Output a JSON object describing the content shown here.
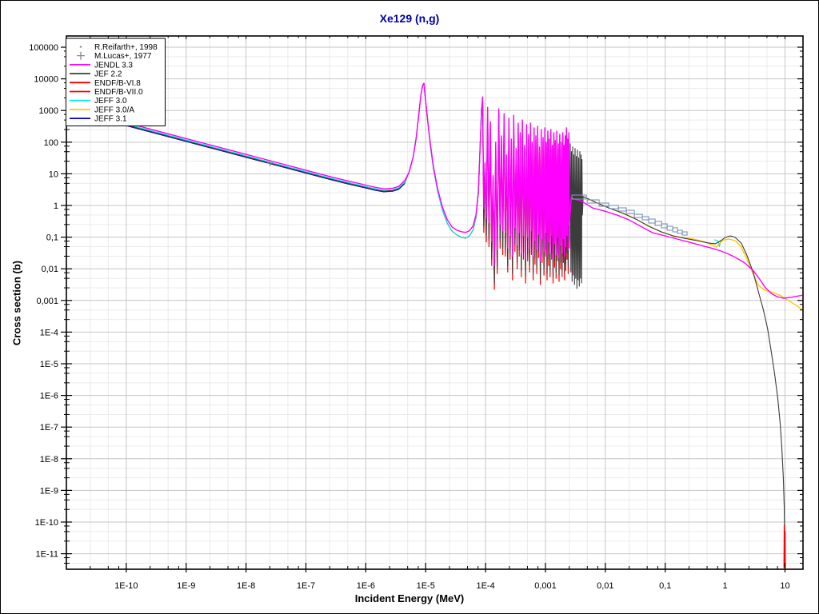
{
  "window": {
    "background": "#ffffff",
    "border_color": "#000000"
  },
  "chart_data": {
    "type": "line",
    "title": "Xe129 (n,g)",
    "title_color": "#0000aa",
    "xlabel": "Incident Energy (MeV)",
    "ylabel": "Cross section (b)",
    "x_scale": "log10",
    "y_scale": "log10",
    "x_range_lg": [
      -11,
      1.301
    ],
    "y_range_lg": [
      -11.49,
      5.354
    ],
    "grid": "on",
    "colors": {
      "grid_major": "#c6c6c6",
      "grid_minor": "#ebebeb",
      "frame": "#000000",
      "exp_box": "#7b95ba",
      "lucas_marker": "#808080",
      "reifarth_marker": "#999999"
    },
    "x_ticks": {
      "lg": [
        -10,
        -9,
        -8,
        -7,
        -6,
        -5,
        -4,
        -3,
        -2,
        -1,
        0,
        1
      ],
      "labels": [
        "1E-10",
        "1E-9",
        "1E-8",
        "1E-7",
        "1E-6",
        "1E-5",
        "1E-4",
        "0,001",
        "0,01",
        "0,1",
        "1",
        "10"
      ]
    },
    "y_ticks": {
      "lg": [
        5,
        4,
        3,
        2,
        1,
        0,
        -1,
        -2,
        -3,
        -4,
        -5,
        -6,
        -7,
        -8,
        -9,
        -10,
        -11
      ],
      "labels": [
        "100000",
        "10000",
        "1000",
        "100",
        "10",
        "1",
        "0,1",
        "0,01",
        "0,001",
        "1E-4",
        "1E-5",
        "1E-6",
        "1E-7",
        "1E-8",
        "1E-9",
        "1E-10",
        "1E-11"
      ]
    },
    "minor_grid_offsets_lg": [
      0.398,
      0.699
    ],
    "minor_tick_offsets_lg": [
      0.398,
      0.699,
      0.875
    ],
    "legend": {
      "position": "top-left",
      "entries": [
        {
          "label": "R.Reifarth+, 1998",
          "marker": "dot",
          "color": "#999999"
        },
        {
          "label": "M.Lucas+, 1977",
          "marker": "plus",
          "color": "#808080"
        },
        {
          "label": "JENDL 3.3",
          "marker": "line",
          "color": "#ff00ff"
        },
        {
          "label": "JEF 2.2",
          "marker": "line",
          "color": "#3c3c3c"
        },
        {
          "label": "ENDF/B-VI.8",
          "marker": "line",
          "color": "#e60000"
        },
        {
          "label": "ENDF/B-VII.0",
          "marker": "line",
          "color": "#ff0000"
        },
        {
          "label": "JEFF 3.0",
          "marker": "line",
          "color": "#00eeee"
        },
        {
          "label": "JEFF 3.0/A",
          "marker": "line",
          "color": "#ffc800"
        },
        {
          "label": "JEFF 3.1",
          "marker": "line",
          "color": "#0000cc"
        }
      ]
    },
    "shared": {
      "thermal_1v": [
        [
          -11,
          3.04
        ],
        [
          -10.5,
          2.79
        ],
        [
          -10,
          2.54
        ],
        [
          -9.5,
          2.29
        ],
        [
          -9,
          2.04
        ],
        [
          -8.5,
          1.79
        ],
        [
          -8,
          1.54
        ],
        [
          -7.6,
          1.34
        ],
        [
          -7,
          1.04
        ],
        [
          -6.6,
          0.84
        ],
        [
          -6.3,
          0.7
        ],
        [
          -6.0,
          0.57
        ],
        [
          -5.85,
          0.5
        ],
        [
          -5.7,
          0.45
        ],
        [
          -5.55,
          0.47
        ],
        [
          -5.45,
          0.53
        ],
        [
          -5.35,
          0.71
        ]
      ],
      "resonance_rise": [
        [
          -5.28,
          1.04
        ],
        [
          -5.21,
          1.52
        ],
        [
          -5.16,
          2.12
        ],
        [
          -5.12,
          2.78
        ],
        [
          -5.08,
          3.48
        ],
        [
          -5.05,
          3.8
        ],
        [
          -5.03,
          3.86
        ]
      ],
      "descent_jef": [
        [
          -5.0,
          3.28
        ],
        [
          -4.96,
          2.55
        ],
        [
          -4.92,
          1.87
        ],
        [
          -4.87,
          1.16
        ],
        [
          -4.8,
          0.45
        ],
        [
          -4.72,
          -0.15
        ],
        [
          -4.64,
          -0.56
        ],
        [
          -4.56,
          -0.81
        ],
        [
          -4.48,
          -0.93
        ],
        [
          -4.4,
          -1.01
        ],
        [
          -4.33,
          -1.03
        ],
        [
          -4.27,
          -0.96
        ],
        [
          -4.21,
          -0.78
        ],
        [
          -4.16,
          -0.38
        ],
        [
          -4.12,
          0.4
        ],
        [
          -4.09,
          1.92
        ],
        [
          -4.07,
          3.0
        ]
      ],
      "descent_jendl": [
        [
          -5.0,
          3.3
        ],
        [
          -4.96,
          2.58
        ],
        [
          -4.92,
          1.92
        ],
        [
          -4.87,
          1.22
        ],
        [
          -4.8,
          0.52
        ],
        [
          -4.72,
          -0.05
        ],
        [
          -4.64,
          -0.45
        ],
        [
          -4.56,
          -0.68
        ],
        [
          -4.48,
          -0.78
        ],
        [
          -4.4,
          -0.83
        ],
        [
          -4.33,
          -0.85
        ],
        [
          -4.27,
          -0.8
        ],
        [
          -4.21,
          -0.65
        ],
        [
          -4.16,
          -0.3
        ],
        [
          -4.12,
          0.45
        ],
        [
          -4.09,
          1.95
        ],
        [
          -4.06,
          3.1
        ]
      ],
      "rrr_spikes": [
        [
          -4.05,
          3.43,
          -0.1
        ],
        [
          -4.01,
          1.35,
          -0.4
        ],
        [
          -3.965,
          3.1,
          -0.55
        ],
        [
          -3.92,
          2.65,
          -1.15
        ],
        [
          -3.875,
          0.95,
          -1.9
        ],
        [
          -3.83,
          2.0,
          -1.4
        ],
        [
          -3.78,
          3.05,
          -0.6
        ],
        [
          -3.735,
          2.2,
          -0.8
        ],
        [
          -3.69,
          2.9,
          -0.85
        ],
        [
          -3.65,
          1.6,
          -1.35
        ],
        [
          -3.61,
          2.75,
          -0.95
        ],
        [
          -3.57,
          2.1,
          -1.6
        ],
        [
          -3.53,
          2.85,
          -0.7
        ],
        [
          -3.49,
          1.8,
          -1.25
        ],
        [
          -3.455,
          2.6,
          -0.85
        ],
        [
          -3.42,
          2.3,
          -1.5
        ],
        [
          -3.385,
          2.7,
          -0.95
        ],
        [
          -3.35,
          1.9,
          -1.7
        ],
        [
          -3.315,
          2.55,
          -1.0
        ],
        [
          -3.28,
          2.25,
          -1.35
        ],
        [
          -3.25,
          2.6,
          -0.8
        ],
        [
          -3.22,
          2.0,
          -1.6
        ],
        [
          -3.19,
          2.45,
          -1.1
        ],
        [
          -3.16,
          2.2,
          -1.4
        ],
        [
          -3.13,
          2.5,
          -0.9
        ],
        [
          -3.1,
          1.85,
          -1.75
        ],
        [
          -3.07,
          2.4,
          -1.05
        ],
        [
          -3.04,
          2.15,
          -1.45
        ],
        [
          -3.01,
          2.45,
          -0.85
        ],
        [
          -2.985,
          2.0,
          -1.6
        ],
        [
          -2.96,
          2.35,
          -1.15
        ],
        [
          -2.935,
          2.1,
          -1.5
        ],
        [
          -2.91,
          2.4,
          -0.95
        ],
        [
          -2.885,
          1.9,
          -1.7
        ],
        [
          -2.86,
          2.3,
          -1.2
        ],
        [
          -2.835,
          2.05,
          -1.55
        ],
        [
          -2.81,
          2.35,
          -1.0
        ],
        [
          -2.785,
          1.95,
          -1.65
        ],
        [
          -2.76,
          2.25,
          -1.25
        ],
        [
          -2.735,
          2.0,
          -1.5
        ],
        [
          -2.71,
          2.3,
          -1.05
        ],
        [
          -2.69,
          1.9,
          -1.6
        ],
        [
          -2.67,
          2.2,
          -1.3
        ],
        [
          -2.65,
          2.45,
          -0.95
        ],
        [
          -2.63,
          2.1,
          -1.4
        ],
        [
          -2.61,
          2.3,
          -0.6
        ]
      ]
    },
    "series": {
      "jendl33": {
        "name": "JENDL 3.3",
        "color": "#ff00ff",
        "width": 1.4,
        "thermal_offset": 0.075,
        "urr": [
          [
            -2.57,
            0.23
          ],
          [
            -2.41,
            0.15
          ],
          [
            -2.21,
            -0.08
          ],
          [
            -2.01,
            -0.18
          ],
          [
            -1.81,
            -0.3
          ],
          [
            -1.61,
            -0.45
          ],
          [
            -1.41,
            -0.66
          ],
          [
            -1.21,
            -0.86
          ],
          [
            -1.0,
            -0.96
          ],
          [
            -0.8,
            -1.06
          ],
          [
            -0.6,
            -1.16
          ],
          [
            -0.4,
            -1.26
          ],
          [
            -0.2,
            -1.36
          ],
          [
            -0.07,
            -1.44
          ],
          [
            0.065,
            -1.54
          ],
          [
            0.2,
            -1.67
          ],
          [
            0.33,
            -1.82
          ],
          [
            0.467,
            -2.05
          ],
          [
            0.574,
            -2.32
          ],
          [
            0.667,
            -2.58
          ],
          [
            0.774,
            -2.78
          ],
          [
            0.867,
            -2.88
          ],
          [
            0.973,
            -2.93
          ],
          [
            1.107,
            -2.9
          ],
          [
            1.301,
            -2.83
          ]
        ]
      },
      "jef22": {
        "name": "JEF 2.2",
        "color": "#3c3c3c",
        "width": 1.1,
        "rrr_modifier": [
          -0.15,
          -0.55
        ],
        "rrr_tail": [
          [
            -2.585,
            1.95,
            -2.1
          ],
          [
            -2.565,
            1.7,
            -2.4
          ],
          [
            -2.545,
            1.85,
            -2.2
          ],
          [
            -2.525,
            1.6,
            -2.5
          ],
          [
            -2.505,
            1.8,
            -2.3
          ],
          [
            -2.485,
            1.55,
            -2.62
          ],
          [
            -2.465,
            1.75,
            -2.35
          ],
          [
            -2.445,
            1.5,
            -2.55
          ],
          [
            -2.425,
            1.7,
            -2.3
          ],
          [
            -2.405,
            1.6,
            -2.45
          ],
          [
            -2.39,
            1.45,
            -0.3
          ]
        ],
        "urr": [
          [
            -2.37,
            0.28
          ],
          [
            -2.14,
            0.08
          ],
          [
            -1.91,
            -0.1
          ],
          [
            -1.7,
            -0.25
          ],
          [
            -1.47,
            -0.45
          ],
          [
            -1.27,
            -0.66
          ],
          [
            -1.07,
            -0.83
          ],
          [
            -0.87,
            -0.96
          ],
          [
            -0.67,
            -1.04
          ],
          [
            -0.47,
            -1.11
          ],
          [
            -0.27,
            -1.19
          ],
          [
            -0.16,
            -1.21
          ],
          [
            -0.07,
            -1.11
          ],
          [
            0.0,
            -1.01
          ],
          [
            0.09,
            -0.96
          ],
          [
            0.17,
            -1.01
          ],
          [
            0.27,
            -1.19
          ],
          [
            0.36,
            -1.55
          ],
          [
            0.467,
            -2.1
          ],
          [
            0.56,
            -2.75
          ],
          [
            0.64,
            -3.3
          ],
          [
            0.71,
            -3.9
          ],
          [
            0.77,
            -4.6
          ],
          [
            0.826,
            -5.3
          ],
          [
            0.88,
            -6.1
          ],
          [
            0.92,
            -6.9
          ],
          [
            0.946,
            -7.6
          ],
          [
            0.973,
            -8.6
          ],
          [
            0.987,
            -9.5
          ],
          [
            1.0,
            -11.2
          ]
        ]
      },
      "endf_b_vi8": {
        "name": "ENDF/B-VI.8",
        "color": "#e60000",
        "width": 1.2,
        "thermal_offset": 0.0
      },
      "endf_b_vii0": {
        "name": "ENDF/B-VII.0",
        "color": "#ff0000",
        "width": 1.2,
        "rrr_modifier": [
          -0.05,
          -0.75
        ],
        "end_spike": [
          [
            0.984,
            -11.45
          ],
          [
            0.988,
            -10.1
          ],
          [
            0.997,
            -10.45
          ],
          [
            1.0,
            -10.3
          ],
          [
            1.004,
            -11.45
          ]
        ]
      },
      "jeff30": {
        "name": "JEFF 3.0",
        "color": "#00eeee",
        "width": 1.2,
        "thermal_offset": 0.03,
        "notch": [
          [
            -0.18,
            -1.08
          ],
          [
            -0.12,
            -1.12
          ],
          [
            -0.095,
            -1.3
          ],
          [
            -0.075,
            -1.1
          ],
          [
            -0.05,
            -1.12
          ]
        ]
      },
      "jeff30a": {
        "name": "JEFF 3.0/A",
        "color": "#ffc800",
        "width": 1.4,
        "urr": [
          [
            -2.37,
            0.28
          ],
          [
            -2.14,
            0.08
          ],
          [
            -1.91,
            -0.1
          ],
          [
            -1.7,
            -0.25
          ],
          [
            -1.47,
            -0.45
          ],
          [
            -1.27,
            -0.66
          ],
          [
            -1.07,
            -0.83
          ],
          [
            -0.87,
            -0.96
          ],
          [
            -0.67,
            -1.03
          ],
          [
            -0.53,
            -1.06
          ],
          [
            -0.36,
            -1.14
          ],
          [
            -0.22,
            -1.24
          ],
          [
            -0.145,
            -1.31
          ],
          [
            -0.1,
            -1.21
          ],
          [
            -0.03,
            -1.09
          ],
          [
            0.065,
            -1.06
          ],
          [
            0.17,
            -1.11
          ],
          [
            0.267,
            -1.31
          ],
          [
            0.36,
            -1.67
          ],
          [
            0.467,
            -2.17
          ],
          [
            0.56,
            -2.53
          ],
          [
            0.667,
            -2.68
          ],
          [
            0.8,
            -2.75
          ],
          [
            0.93,
            -2.85
          ],
          [
            1.065,
            -3.01
          ],
          [
            1.19,
            -3.16
          ],
          [
            1.301,
            -3.31
          ]
        ]
      },
      "jeff31": {
        "name": "JEFF 3.1",
        "color": "#0000cc",
        "width": 1.1,
        "thermal_offset": -0.02
      }
    },
    "experimental": {
      "reifarth_boxes": [
        [
          -2.558,
          -2.318,
          0.266,
          0.063
        ],
        [
          -2.304,
          -2.104,
          0.127,
          0.05
        ],
        [
          -2.104,
          -1.944,
          0.025,
          0.05
        ],
        [
          -1.944,
          -1.783,
          -0.05,
          0.05
        ],
        [
          -1.783,
          -1.65,
          -0.126,
          0.05
        ],
        [
          -1.65,
          -1.516,
          -0.202,
          0.05
        ],
        [
          -1.516,
          -1.383,
          -0.328,
          0.05
        ],
        [
          -1.383,
          -1.276,
          -0.404,
          0.05
        ],
        [
          -1.276,
          -1.169,
          -0.492,
          0.063
        ],
        [
          -1.169,
          -1.062,
          -0.568,
          0.063
        ],
        [
          -1.062,
          -0.968,
          -0.644,
          0.063
        ],
        [
          -0.968,
          -0.875,
          -0.719,
          0.063
        ],
        [
          -0.875,
          -0.795,
          -0.77,
          0.063
        ],
        [
          -0.795,
          -0.715,
          -0.833,
          0.05
        ],
        [
          -0.715,
          -0.635,
          -0.884,
          0.05
        ]
      ],
      "lucas_points": [
        [
          -7.6,
          1.34
        ]
      ]
    }
  }
}
